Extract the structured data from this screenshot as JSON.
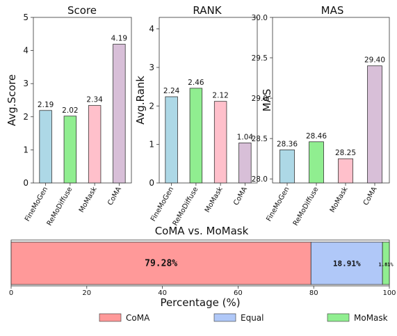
{
  "chart_data": [
    {
      "type": "bar",
      "title": "Score",
      "ylabel": "Avg.Score",
      "categories": [
        "FineMoGen",
        "ReMoDiffuse",
        "MoMask",
        "CoMA"
      ],
      "values": [
        2.19,
        2.02,
        2.34,
        4.19
      ],
      "value_labels": [
        "2.19",
        "2.02",
        "2.34",
        "4.19"
      ],
      "ylim": [
        0,
        5
      ],
      "yticks": [
        "0",
        "1",
        "2",
        "3",
        "4",
        "5"
      ],
      "colors": [
        "#add8e6",
        "#90ee90",
        "#ffc0cb",
        "#d8bfd8"
      ]
    },
    {
      "type": "bar",
      "title": "RANK",
      "ylabel": "Avg.Rank",
      "categories": [
        "FineMoGen",
        "ReMoDiffuse",
        "MoMask",
        "CoMA"
      ],
      "values": [
        2.24,
        2.46,
        2.12,
        1.04
      ],
      "value_labels": [
        "2.24",
        "2.46",
        "2.12",
        "1.04"
      ],
      "ylim": [
        0,
        4.3
      ],
      "yticks": [
        "0",
        "1",
        "2",
        "3",
        "4"
      ],
      "colors": [
        "#add8e6",
        "#90ee90",
        "#ffc0cb",
        "#d8bfd8"
      ]
    },
    {
      "type": "bar",
      "title": "MAS",
      "ylabel": "MAS",
      "categories": [
        "FineMoGen",
        "ReMoDiffuse",
        "MoMask",
        "CoMA"
      ],
      "values": [
        28.36,
        28.46,
        28.25,
        29.4
      ],
      "value_labels": [
        "28.36",
        "28.46",
        "28.25",
        "29.40"
      ],
      "ylim": [
        27.95,
        30.0
      ],
      "yticks": [
        "28.0",
        "28.5",
        "29.0",
        "29.5",
        "30.0"
      ],
      "colors": [
        "#add8e6",
        "#90ee90",
        "#ffc0cb",
        "#d8bfd8"
      ]
    },
    {
      "type": "bar",
      "orientation": "horizontal-stacked",
      "title": "CoMA vs. MoMask",
      "xlabel": "Percentage (%)",
      "xlim": [
        0,
        100
      ],
      "xticks": [
        "0",
        "20",
        "40",
        "60",
        "80",
        "100"
      ],
      "series": [
        {
          "name": "CoMA",
          "value": 79.28,
          "label": "79.28%",
          "color": "#ff9999"
        },
        {
          "name": "Equal",
          "value": 18.91,
          "label": "18.91%",
          "color": "#b0c8f8"
        },
        {
          "name": "MoMask",
          "value": 1.81,
          "label": "1.81%",
          "color": "#90ee90"
        }
      ],
      "legend_position": "bottom"
    }
  ]
}
